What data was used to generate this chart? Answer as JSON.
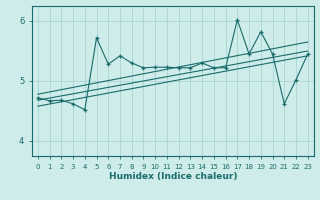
{
  "xlabel": "Humidex (Indice chaleur)",
  "ylabel": "",
  "bg_color": "#ceecea",
  "grid_color": "#a8d5d1",
  "line_color": "#1a6b6b",
  "xlim": [
    -0.5,
    23.5
  ],
  "ylim": [
    3.75,
    6.25
  ],
  "yticks": [
    4,
    5,
    6
  ],
  "xticks": [
    0,
    1,
    2,
    3,
    4,
    5,
    6,
    7,
    8,
    9,
    10,
    11,
    12,
    13,
    14,
    15,
    16,
    17,
    18,
    19,
    20,
    21,
    22,
    23
  ],
  "main_x": [
    0,
    1,
    2,
    3,
    4,
    5,
    6,
    7,
    8,
    9,
    10,
    11,
    12,
    13,
    14,
    15,
    16,
    17,
    18,
    19,
    20,
    21,
    22,
    23
  ],
  "main_y": [
    4.72,
    4.67,
    4.68,
    4.62,
    4.52,
    5.72,
    5.28,
    5.42,
    5.3,
    5.22,
    5.23,
    5.23,
    5.22,
    5.22,
    5.3,
    5.22,
    5.22,
    6.02,
    5.45,
    5.82,
    5.45,
    4.62,
    5.02,
    5.45
  ],
  "line1_x": [
    0,
    23
  ],
  "line1_y": [
    4.68,
    5.5
  ],
  "line2_x": [
    0,
    23
  ],
  "line2_y": [
    4.78,
    5.65
  ],
  "line3_x": [
    0,
    23
  ],
  "line3_y": [
    4.58,
    5.42
  ]
}
